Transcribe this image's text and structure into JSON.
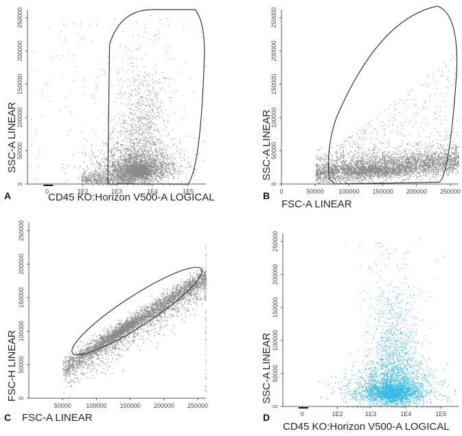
{
  "chart_data": [
    {
      "type": "scatter",
      "panel_label": "A",
      "xlabel": "CD45 KO:Horizon V500-A LOGICAL",
      "ylabel": "SSC-A LINEAR",
      "x_scale": "logicle",
      "x_ticks": [
        "0",
        "1E2",
        "1E3",
        "1E4",
        "1E5"
      ],
      "y_ticks": [
        "0",
        "50000",
        "100000",
        "150000",
        "200000",
        "250000"
      ],
      "ylim": [
        0,
        262144
      ],
      "point_color": "#8a8a8a",
      "gate": "polygon around CD45+ events",
      "cluster": {
        "x_center_decade": 3.6,
        "y_center": 20000,
        "spread_y": 45000
      }
    },
    {
      "type": "scatter",
      "panel_label": "B",
      "xlabel": "FSC-A LINEAR",
      "ylabel": "SSC-A LINEAR",
      "x_ticks": [
        "0",
        "50000",
        "100000",
        "150000",
        "200000",
        "250000"
      ],
      "y_ticks": [
        "0",
        "50000",
        "100000",
        "150000",
        "200000",
        "250000"
      ],
      "xlim": [
        0,
        262144
      ],
      "ylim": [
        0,
        262144
      ],
      "point_color": "#8a8a8a",
      "gate": "polygon excluding debris",
      "cluster": {
        "x_center": 140000,
        "y_center": 20000
      }
    },
    {
      "type": "scatter",
      "panel_label": "C",
      "xlabel": "FSC-A LINEAR",
      "ylabel": "FSC-H LINEAR",
      "x_ticks": [
        "50000",
        "100000",
        "150000",
        "200000",
        "250000"
      ],
      "y_ticks": [
        "0",
        "50000",
        "100000",
        "150000",
        "200000",
        "250000"
      ],
      "xlim": [
        0,
        262144
      ],
      "ylim": [
        0,
        262144
      ],
      "point_color": "#8a8a8a",
      "gate": "singlet ellipse along diagonal",
      "cluster": {
        "x_center": 135000,
        "y_center": 110000
      }
    },
    {
      "type": "scatter",
      "panel_label": "D",
      "xlabel": "CD45 KO:Horizon V500-A LOGICAL",
      "ylabel": "SSC-A LINEAR",
      "x_scale": "logicle",
      "x_ticks": [
        "0",
        "1E2",
        "1E3",
        "1E4",
        "1E5"
      ],
      "y_ticks": [
        "0",
        "50000",
        "100000",
        "150000",
        "200000",
        "250000"
      ],
      "ylim": [
        0,
        262144
      ],
      "point_color": "#3bbbe6",
      "gate": "none (gated population)",
      "cluster": {
        "x_center_decade": 3.6,
        "y_center": 20000
      }
    }
  ]
}
